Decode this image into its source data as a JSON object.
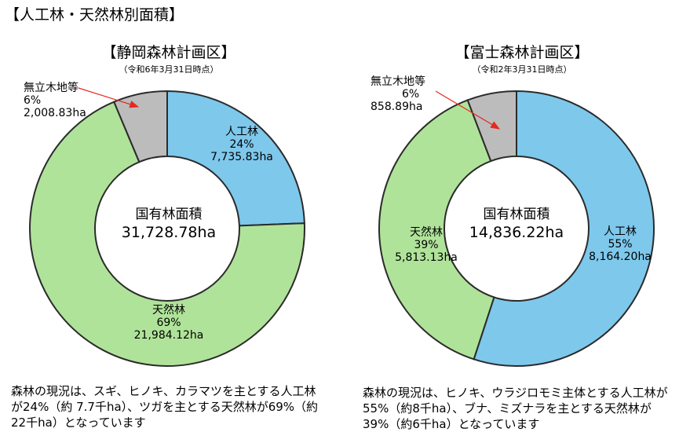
{
  "page": {
    "title": "【人工林・天然林別面積】"
  },
  "colors": {
    "planted": "#7ec8ec",
    "natural": "#b0e39a",
    "other": "#bcbcbc",
    "stroke": "#2b2b2b",
    "arrow": "#e8281e"
  },
  "chart_data": [
    {
      "type": "pie",
      "title": "【静岡森林計画区】",
      "subtitle": "（令和6年3月31日時点）",
      "center": {
        "label": "国有林面積",
        "value": "31,728.78ha"
      },
      "slices": [
        {
          "name": "人工林",
          "percent_label": "24%",
          "area_label": "7,735.83ha",
          "value": 7735.83
        },
        {
          "name": "天然林",
          "percent_label": "69%",
          "area_label": "21,984.12ha",
          "value": 21984.12
        },
        {
          "name": "無立木地等",
          "percent_label": "6%",
          "area_label": "2,008.83ha",
          "value": 2008.83
        }
      ],
      "description": "森林の現況は、スギ、ヒノキ、カラマツを主とする人工林が24%（約 7.7千ha）、ツガを主とする天然林が69%（約22千ha）となっています"
    },
    {
      "type": "pie",
      "title": "【富士森林計画区】",
      "subtitle": "（令和2年3月31日時点）",
      "center": {
        "label": "国有林面積",
        "value": "14,836.22ha"
      },
      "slices": [
        {
          "name": "人工林",
          "percent_label": "55%",
          "area_label": "8,164.20ha",
          "value": 8164.2
        },
        {
          "name": "天然林",
          "percent_label": "39%",
          "area_label": "5,813.13ha",
          "value": 5813.13
        },
        {
          "name": "無立木地等",
          "percent_label": "6%",
          "area_label": "858.89ha",
          "value": 858.89
        }
      ],
      "description": "森林の現況は、ヒノキ、ウラジロモミ主体とする人工林が55%（約8千ha）、ブナ、ミズナラを主とする天然林が39%（約6千ha）となっています"
    }
  ]
}
